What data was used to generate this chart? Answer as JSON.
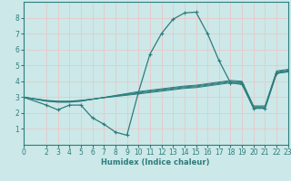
{
  "xlabel": "Humidex (Indice chaleur)",
  "bg_color": "#cce8e8",
  "line_color": "#2d7d7d",
  "grid_color": "#e8c8c8",
  "xlim": [
    0,
    23
  ],
  "ylim": [
    0,
    9
  ],
  "xticks": [
    0,
    2,
    3,
    4,
    5,
    6,
    7,
    8,
    9,
    10,
    11,
    12,
    13,
    14,
    15,
    16,
    17,
    18,
    19,
    20,
    21,
    22,
    23
  ],
  "yticks": [
    1,
    2,
    3,
    4,
    5,
    6,
    7,
    8
  ],
  "lines": [
    {
      "x": [
        0,
        2,
        3,
        4,
        5,
        6,
        7,
        8,
        9,
        10,
        11,
        12,
        13,
        14,
        15,
        16,
        17,
        18,
        19,
        20,
        21,
        22,
        23
      ],
      "y": [
        3.0,
        2.5,
        2.2,
        2.5,
        2.5,
        1.7,
        1.3,
        0.8,
        0.6,
        3.3,
        5.7,
        7.0,
        7.9,
        8.3,
        8.35,
        7.0,
        5.3,
        3.9,
        3.8,
        2.3,
        2.3,
        4.5,
        4.6
      ],
      "marker": true
    },
    {
      "x": [
        0,
        2,
        3,
        4,
        5,
        10,
        14,
        15,
        18,
        19,
        20,
        21,
        22,
        23
      ],
      "y": [
        3.0,
        2.8,
        2.75,
        2.75,
        2.8,
        3.2,
        3.55,
        3.6,
        3.9,
        3.85,
        2.3,
        2.3,
        4.5,
        4.6
      ],
      "marker": false
    },
    {
      "x": [
        0,
        2,
        3,
        4,
        5,
        10,
        14,
        15,
        18,
        19,
        20,
        21,
        22,
        23
      ],
      "y": [
        3.0,
        2.78,
        2.72,
        2.72,
        2.78,
        3.25,
        3.6,
        3.65,
        3.95,
        3.9,
        2.35,
        2.35,
        4.55,
        4.65
      ],
      "marker": false
    },
    {
      "x": [
        0,
        2,
        3,
        4,
        5,
        10,
        14,
        15,
        18,
        19,
        20,
        21,
        22,
        23
      ],
      "y": [
        3.0,
        2.76,
        2.7,
        2.7,
        2.76,
        3.3,
        3.65,
        3.7,
        4.0,
        3.95,
        2.4,
        2.4,
        4.6,
        4.7
      ],
      "marker": false
    },
    {
      "x": [
        0,
        2,
        3,
        4,
        5,
        10,
        14,
        15,
        18,
        19,
        20,
        21,
        22,
        23
      ],
      "y": [
        3.0,
        2.74,
        2.68,
        2.68,
        2.74,
        3.35,
        3.7,
        3.75,
        4.05,
        4.0,
        2.45,
        2.45,
        4.65,
        4.75
      ],
      "marker": false
    }
  ]
}
